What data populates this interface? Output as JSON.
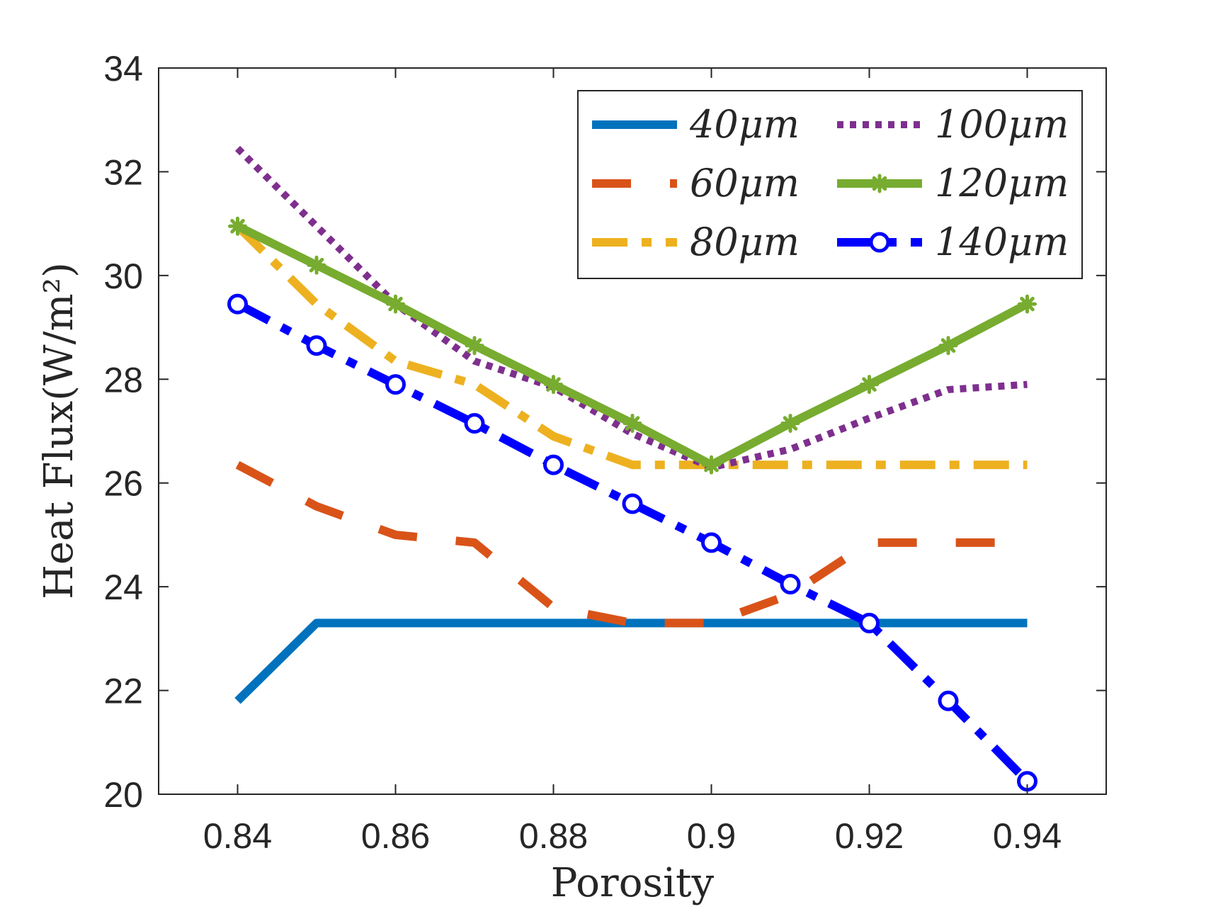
{
  "chart_data": {
    "type": "line",
    "title": "",
    "xlabel": "Porosity",
    "ylabel": "Heat Flux(W/m²)",
    "xlim": [
      0.83,
      0.95
    ],
    "ylim": [
      20,
      34
    ],
    "xticks": [
      0.84,
      0.86,
      0.88,
      0.9,
      0.92,
      0.94
    ],
    "xtick_labels": [
      "0.84",
      "0.86",
      "0.88",
      "0.9",
      "0.92",
      "0.94"
    ],
    "yticks": [
      20,
      22,
      24,
      26,
      28,
      30,
      32,
      34
    ],
    "ytick_labels": [
      "20",
      "22",
      "24",
      "26",
      "28",
      "30",
      "32",
      "34"
    ],
    "grid": false,
    "legend_position": "top-right",
    "x": [
      0.84,
      0.85,
      0.86,
      0.87,
      0.88,
      0.89,
      0.9,
      0.91,
      0.92,
      0.93,
      0.94
    ],
    "series": [
      {
        "name": "40μm",
        "color": "#0072BD",
        "style": "solid",
        "marker": "none",
        "values": [
          21.8,
          23.3,
          23.3,
          23.3,
          23.3,
          23.3,
          23.3,
          23.3,
          23.3,
          23.3,
          23.3
        ]
      },
      {
        "name": "60μm",
        "color": "#D95319",
        "style": "dashed",
        "marker": "none",
        "values": [
          26.35,
          25.55,
          25.0,
          24.85,
          23.6,
          23.3,
          23.3,
          23.85,
          24.85,
          24.85,
          24.85
        ]
      },
      {
        "name": "80μm",
        "color": "#EDB120",
        "style": "dashdot",
        "marker": "none",
        "values": [
          30.95,
          29.45,
          28.35,
          27.9,
          26.9,
          26.35,
          26.35,
          26.35,
          26.35,
          26.35,
          26.35
        ]
      },
      {
        "name": "100μm",
        "color": "#7E2F8E",
        "style": "dotted",
        "marker": "none",
        "values": [
          32.45,
          30.95,
          29.45,
          28.35,
          27.85,
          26.95,
          26.3,
          26.65,
          27.25,
          27.8,
          27.9
        ]
      },
      {
        "name": "120μm",
        "color": "#77AC30",
        "style": "solid",
        "marker": "star",
        "values": [
          30.95,
          30.2,
          29.45,
          28.65,
          27.9,
          27.15,
          26.35,
          27.15,
          27.9,
          28.65,
          29.45
        ]
      },
      {
        "name": "140μm",
        "color": "#0000FF",
        "style": "dashdot",
        "marker": "circle",
        "values": [
          29.45,
          28.65,
          27.9,
          27.15,
          26.35,
          25.6,
          24.85,
          24.05,
          23.3,
          21.8,
          20.25
        ]
      }
    ]
  }
}
